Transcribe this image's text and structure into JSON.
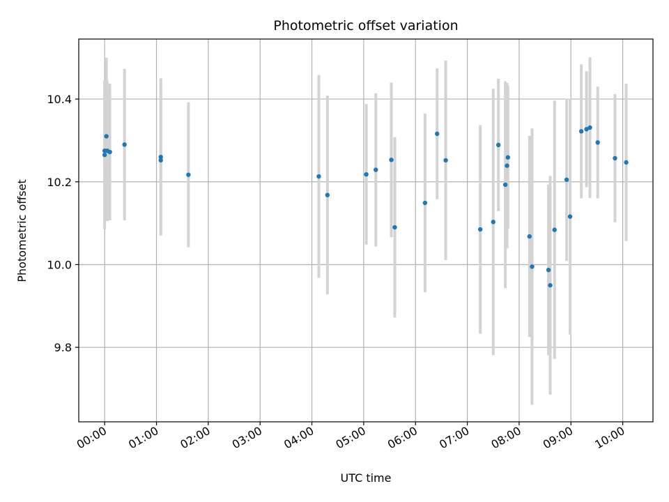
{
  "chart_data": {
    "type": "scatter",
    "title": "Photometric offset variation",
    "xlabel": "UTC time",
    "ylabel": "Photometric offset",
    "x_ticks": [
      "00:00",
      "01:00",
      "02:00",
      "03:00",
      "04:00",
      "05:00",
      "06:00",
      "07:00",
      "08:00",
      "09:00",
      "10:00"
    ],
    "y_ticks": [
      "9.8",
      "10.0",
      "10.2",
      "10.4"
    ],
    "xlim": [
      "-00:30",
      "10:35"
    ],
    "ylim": [
      9.62,
      10.545
    ],
    "grid": true,
    "colors": {
      "points": "#1f77b4",
      "error_bars": "#d3d3d3",
      "grid": "#b0b0b0"
    },
    "points": [
      {
        "x": "00:00",
        "y": 10.265,
        "yerr": 0.18
      },
      {
        "x": "00:00",
        "y": 10.275,
        "yerr": 0.17
      },
      {
        "x": "00:02",
        "y": 10.31,
        "yerr": 0.19
      },
      {
        "x": "00:03",
        "y": 10.275,
        "yerr": 0.17
      },
      {
        "x": "00:06",
        "y": 10.272,
        "yerr": 0.165
      },
      {
        "x": "00:23",
        "y": 10.29,
        "yerr": 0.183
      },
      {
        "x": "01:05",
        "y": 10.26,
        "yerr": 0.19
      },
      {
        "x": "01:05",
        "y": 10.252,
        "yerr": 0.18
      },
      {
        "x": "01:37",
        "y": 10.217,
        "yerr": 0.175
      },
      {
        "x": "04:08",
        "y": 10.213,
        "yerr": 0.245
      },
      {
        "x": "04:18",
        "y": 10.168,
        "yerr": 0.24
      },
      {
        "x": "05:03",
        "y": 10.218,
        "yerr": 0.17
      },
      {
        "x": "05:14",
        "y": 10.229,
        "yerr": 0.185
      },
      {
        "x": "05:32",
        "y": 10.253,
        "yerr": 0.187
      },
      {
        "x": "05:36",
        "y": 10.09,
        "yerr": 0.218
      },
      {
        "x": "06:11",
        "y": 10.149,
        "yerr": 0.216
      },
      {
        "x": "06:25",
        "y": 10.316,
        "yerr": 0.158
      },
      {
        "x": "06:35",
        "y": 10.252,
        "yerr": 0.241
      },
      {
        "x": "07:15",
        "y": 10.085,
        "yerr": 0.252
      },
      {
        "x": "07:30",
        "y": 10.103,
        "yerr": 0.322
      },
      {
        "x": "07:36",
        "y": 10.289,
        "yerr": 0.16
      },
      {
        "x": "07:44",
        "y": 10.193,
        "yerr": 0.25
      },
      {
        "x": "07:46",
        "y": 10.239,
        "yerr": 0.2
      },
      {
        "x": "07:47",
        "y": 10.259,
        "yerr": 0.173
      },
      {
        "x": "08:12",
        "y": 10.068,
        "yerr": 0.243
      },
      {
        "x": "08:15",
        "y": 9.995,
        "yerr": 0.334
      },
      {
        "x": "08:34",
        "y": 9.987,
        "yerr": 0.206
      },
      {
        "x": "08:36",
        "y": 9.95,
        "yerr": 0.264
      },
      {
        "x": "08:41",
        "y": 10.084,
        "yerr": 0.312
      },
      {
        "x": "08:55",
        "y": 10.205,
        "yerr": 0.196
      },
      {
        "x": "08:59",
        "y": 10.116,
        "yerr": 0.285
      },
      {
        "x": "09:12",
        "y": 10.322,
        "yerr": 0.162
      },
      {
        "x": "09:18",
        "y": 10.327,
        "yerr": 0.14
      },
      {
        "x": "09:22",
        "y": 10.331,
        "yerr": 0.17
      },
      {
        "x": "09:31",
        "y": 10.295,
        "yerr": 0.135
      },
      {
        "x": "09:51",
        "y": 10.257,
        "yerr": 0.155
      },
      {
        "x": "10:04",
        "y": 10.247,
        "yerr": 0.19
      }
    ]
  }
}
